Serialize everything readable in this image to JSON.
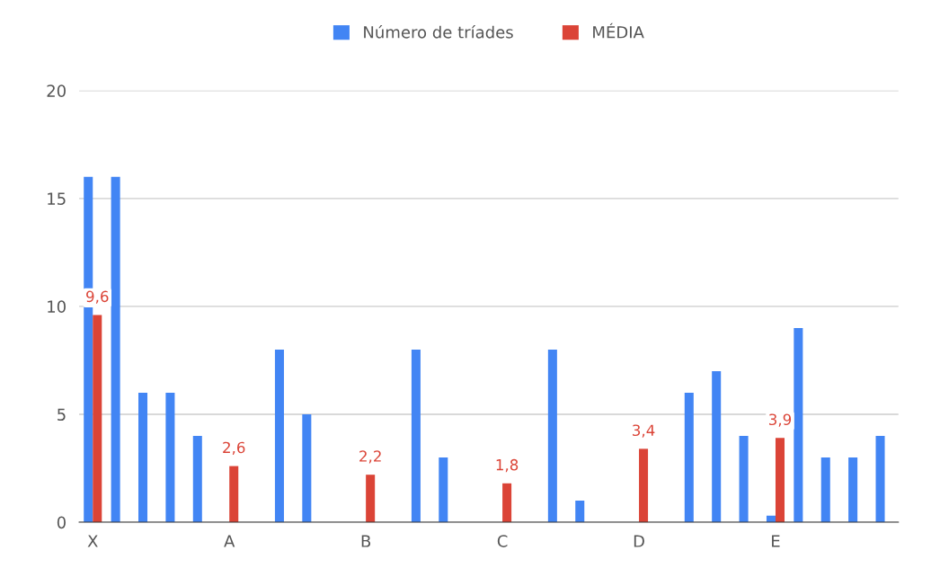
{
  "chart_data": {
    "type": "bar",
    "categories": [
      "X",
      null,
      null,
      null,
      null,
      "A",
      null,
      null,
      null,
      null,
      "B",
      null,
      null,
      null,
      null,
      "C",
      null,
      null,
      null,
      null,
      "D",
      null,
      null,
      null,
      null,
      "E",
      null,
      null,
      null,
      null
    ],
    "series": [
      {
        "name": "Número de tríades",
        "color": "#4285f4",
        "values": [
          16,
          16,
          6,
          6,
          4,
          null,
          null,
          8,
          5,
          null,
          null,
          null,
          8,
          3,
          null,
          null,
          null,
          8,
          1,
          null,
          null,
          null,
          6,
          7,
          4,
          0.3,
          9,
          3,
          3,
          4
        ]
      },
      {
        "name": "MÉDIA",
        "color": "#db4437",
        "values": [
          9.6,
          null,
          null,
          null,
          null,
          2.6,
          null,
          null,
          null,
          null,
          2.2,
          null,
          null,
          null,
          null,
          1.8,
          null,
          null,
          null,
          null,
          3.4,
          null,
          null,
          null,
          null,
          3.9,
          null,
          null,
          null,
          null
        ],
        "value_labels": [
          "9,6",
          null,
          null,
          null,
          null,
          "2,6",
          null,
          null,
          null,
          null,
          "2,2",
          null,
          null,
          null,
          null,
          "1,8",
          null,
          null,
          null,
          null,
          "3,4",
          null,
          null,
          null,
          null,
          "3,9",
          null,
          null,
          null,
          null
        ]
      }
    ],
    "ylim": [
      0,
      20
    ],
    "yticks": [
      0,
      5,
      10,
      15,
      20
    ],
    "grid": "y",
    "legend": "top"
  }
}
